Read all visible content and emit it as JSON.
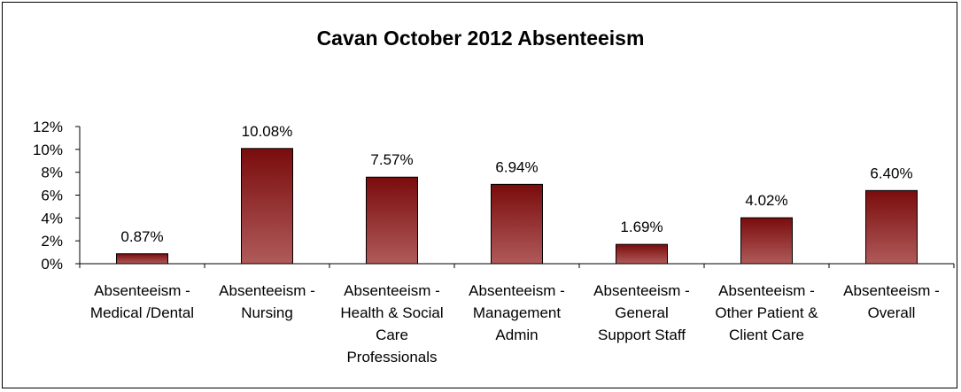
{
  "chart_data": {
    "type": "bar",
    "title": "Cavan October 2012 Absenteeism",
    "xlabel": "",
    "ylabel": "",
    "ylim": [
      0,
      12
    ],
    "yticks": [
      "0%",
      "2%",
      "4%",
      "6%",
      "8%",
      "10%",
      "12%"
    ],
    "ytick_values": [
      0,
      2,
      4,
      6,
      8,
      10,
      12
    ],
    "grid": false,
    "legend": "none",
    "categories": [
      [
        "Absenteeism -",
        "Medical /Dental"
      ],
      [
        "Absenteeism -",
        "Nursing"
      ],
      [
        "Absenteeism -",
        "Health & Social",
        "Care",
        "Professionals"
      ],
      [
        "Absenteeism -",
        "Management",
        "Admin"
      ],
      [
        "Absenteeism -",
        "General",
        "Support Staff"
      ],
      [
        "Absenteeism -",
        "Other Patient &",
        "Client Care"
      ],
      [
        "Absenteeism -",
        "Overall"
      ]
    ],
    "values": [
      0.87,
      10.08,
      7.57,
      6.94,
      1.69,
      4.02,
      6.4
    ],
    "data_labels": [
      "0.87%",
      "10.08%",
      "7.57%",
      "6.94%",
      "1.69%",
      "4.02%",
      "6.40%"
    ],
    "colors": {
      "bar_top": "#7a0c0c",
      "bar_bottom": "#b05a5a",
      "bar_outline": "#000000"
    }
  }
}
